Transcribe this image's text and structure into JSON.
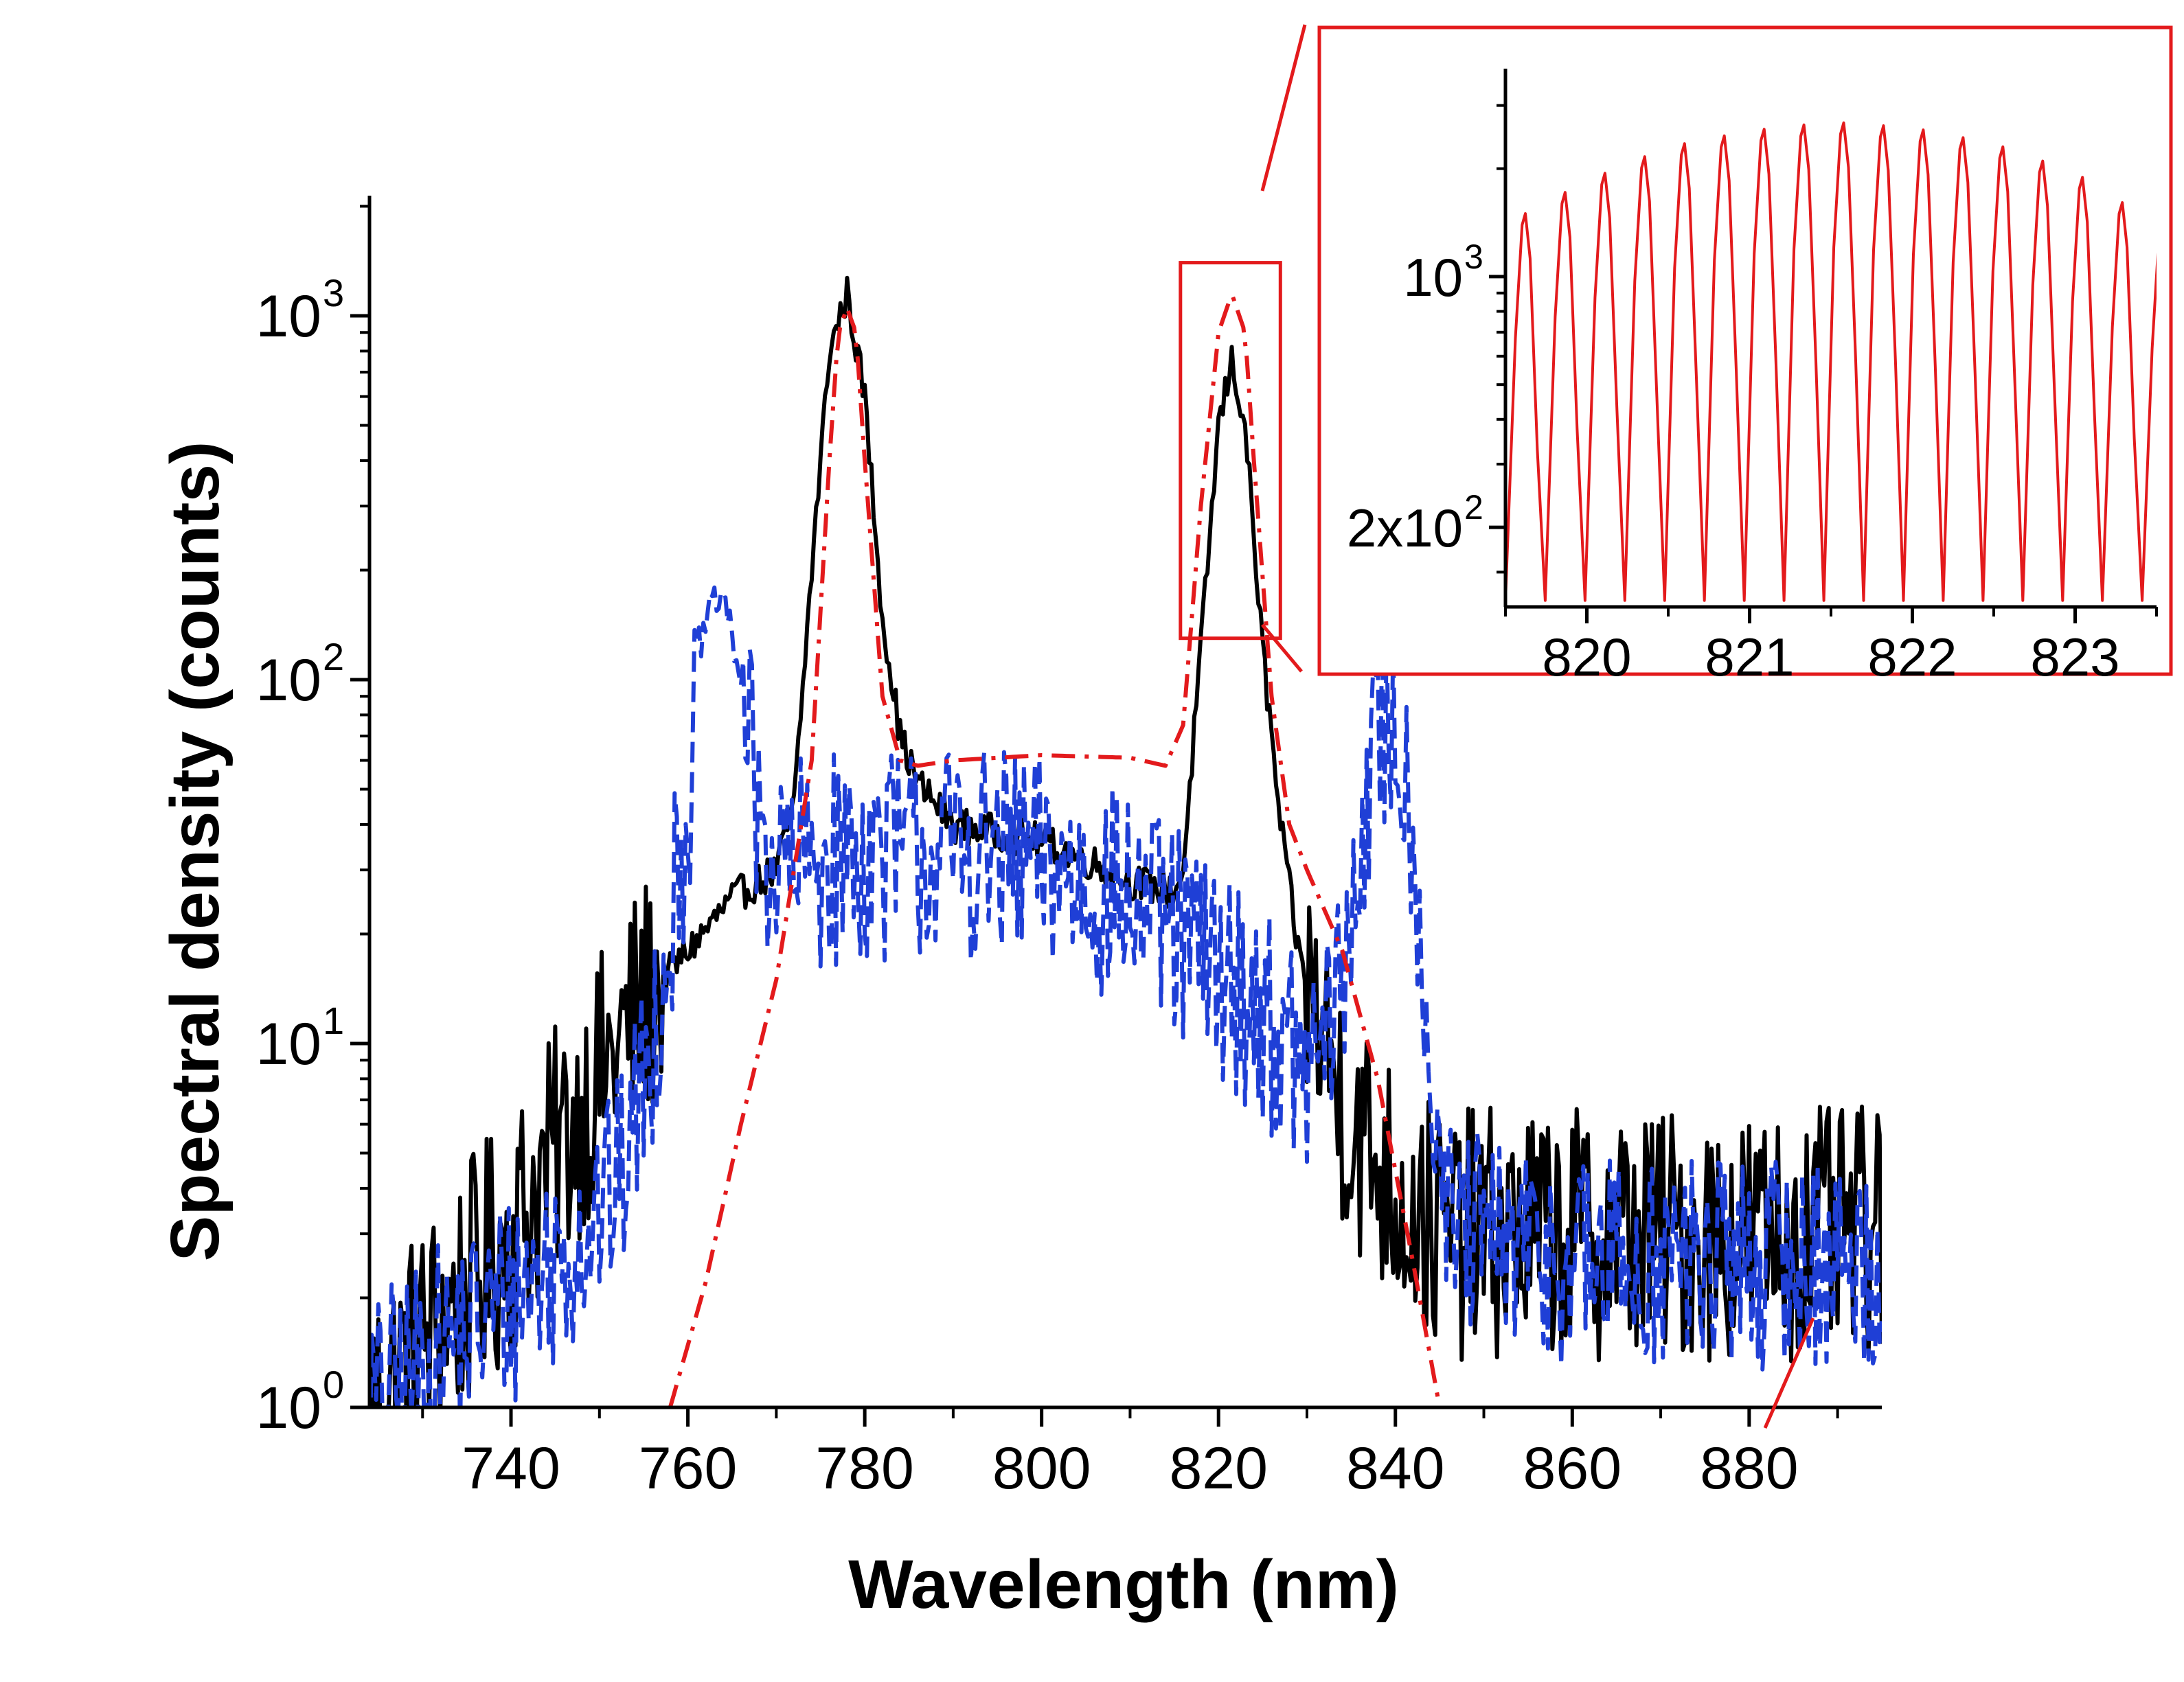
{
  "chart_data": [
    {
      "type": "line",
      "title": "",
      "xlabel": "Wavelength (nm)",
      "ylabel": "Spectral density (counts)",
      "yscale": "log",
      "xlim": [
        724,
        895
      ],
      "ylim": [
        1,
        2000
      ],
      "xticks": [
        740,
        760,
        780,
        800,
        820,
        840,
        860,
        880
      ],
      "xtick_labels": [
        "740",
        "760",
        "780",
        "800",
        "820",
        "840",
        "860",
        "880"
      ],
      "yticks": [
        {
          "mantissa": "10",
          "exponent": "0",
          "value": 1
        },
        {
          "mantissa": "10",
          "exponent": "1",
          "value": 10
        },
        {
          "mantissa": "10",
          "exponent": "2",
          "value": 100
        },
        {
          "mantissa": "10",
          "exponent": "3",
          "value": 1000
        }
      ],
      "legend": "none",
      "zoom_box": {
        "x_range": [
          815.7,
          827
        ],
        "y_range": [
          130,
          1400
        ],
        "color": "#e31a1c"
      },
      "series": [
        {
          "name": "black solid",
          "color": "#000000",
          "style": "solid",
          "x": [
            724,
            740,
            745,
            750,
            755,
            760,
            765,
            770,
            772,
            774,
            776,
            778,
            780,
            782,
            784,
            786,
            790,
            800,
            805,
            810,
            815,
            816,
            818,
            820,
            821.5,
            823,
            825,
            827,
            829,
            831,
            835,
            840,
            845,
            850,
            860,
            870,
            880,
            890,
            895
          ],
          "y": [
            1,
            3,
            5,
            8,
            13,
            18,
            25,
            30,
            45,
            200,
            800,
            1150,
            600,
            150,
            70,
            52,
            40,
            36,
            32,
            28,
            26,
            30,
            120,
            500,
            750,
            500,
            120,
            40,
            18,
            12,
            6,
            4,
            3,
            3,
            3,
            3,
            3,
            3,
            3
          ],
          "noise_below_y": 15,
          "noise_amplitude_decades": 0.35
        },
        {
          "name": "blue dashed",
          "color": "#1f3fd6",
          "style": "dashed",
          "x": [
            724,
            745,
            752,
            756,
            760,
            762,
            764,
            766,
            768,
            770,
            780,
            790,
            800,
            810,
            815,
            820,
            825,
            830,
            834,
            836,
            838,
            840,
            842,
            844,
            846,
            860,
            880,
            895
          ],
          "y": [
            1,
            2.5,
            4,
            10,
            45,
            150,
            170,
            100,
            40,
            30,
            33,
            34,
            31,
            25,
            20,
            16,
            12,
            8,
            14,
            35,
            70,
            75,
            40,
            8,
            3,
            2.5,
            2.5,
            2.5
          ],
          "noise_below_y": 100,
          "noise_amplitude_decades": 0.3
        },
        {
          "name": "red dash-dot",
          "color": "#e31a1c",
          "style": "dash-dot",
          "x": [
            758,
            762,
            766,
            770,
            774,
            776,
            777,
            778,
            779,
            780,
            782,
            784,
            786,
            790,
            800,
            810,
            814,
            816,
            818,
            820,
            821.5,
            823,
            824,
            826,
            828,
            830,
            834,
            838,
            842,
            845
          ],
          "y": [
            1,
            2.2,
            6,
            15,
            60,
            400,
            900,
            1050,
            900,
            400,
            90,
            60,
            58,
            60,
            62,
            61,
            58,
            75,
            300,
            900,
            1150,
            900,
            400,
            90,
            40,
            30,
            18,
            8,
            2.5,
            1
          ]
        }
      ]
    },
    {
      "type": "line",
      "title": "inset (zoom of red series)",
      "xlabel": "",
      "ylabel": "",
      "yscale": "log",
      "xlim": [
        819.5,
        823.5
      ],
      "ylim": [
        120,
        3800
      ],
      "xticks": [
        820,
        821,
        822,
        823
      ],
      "xtick_labels": [
        "820",
        "821",
        "822",
        "823"
      ],
      "yticks": [
        {
          "mantissa": "",
          "coeff": "",
          "base": "10",
          "exponent": "3",
          "value": 1000
        },
        {
          "mantissa": "",
          "coeff": "2x",
          "base": "10",
          "exponent": "2",
          "value": 200
        }
      ],
      "series": [
        {
          "name": "red fringes",
          "color": "#e31a1c",
          "style": "solid",
          "fringe_start": 819.5,
          "fringe_period": 0.2445,
          "fringe_count": 17,
          "fringe_min": 125,
          "x_peak_envelope": [
            819.5,
            820.0,
            820.5,
            821.0,
            821.5,
            822.0,
            822.5,
            823.0,
            823.5
          ],
          "y_peak_envelope": [
            1400,
            1850,
            2300,
            2550,
            2700,
            2600,
            2350,
            1950,
            1400
          ]
        }
      ]
    }
  ]
}
